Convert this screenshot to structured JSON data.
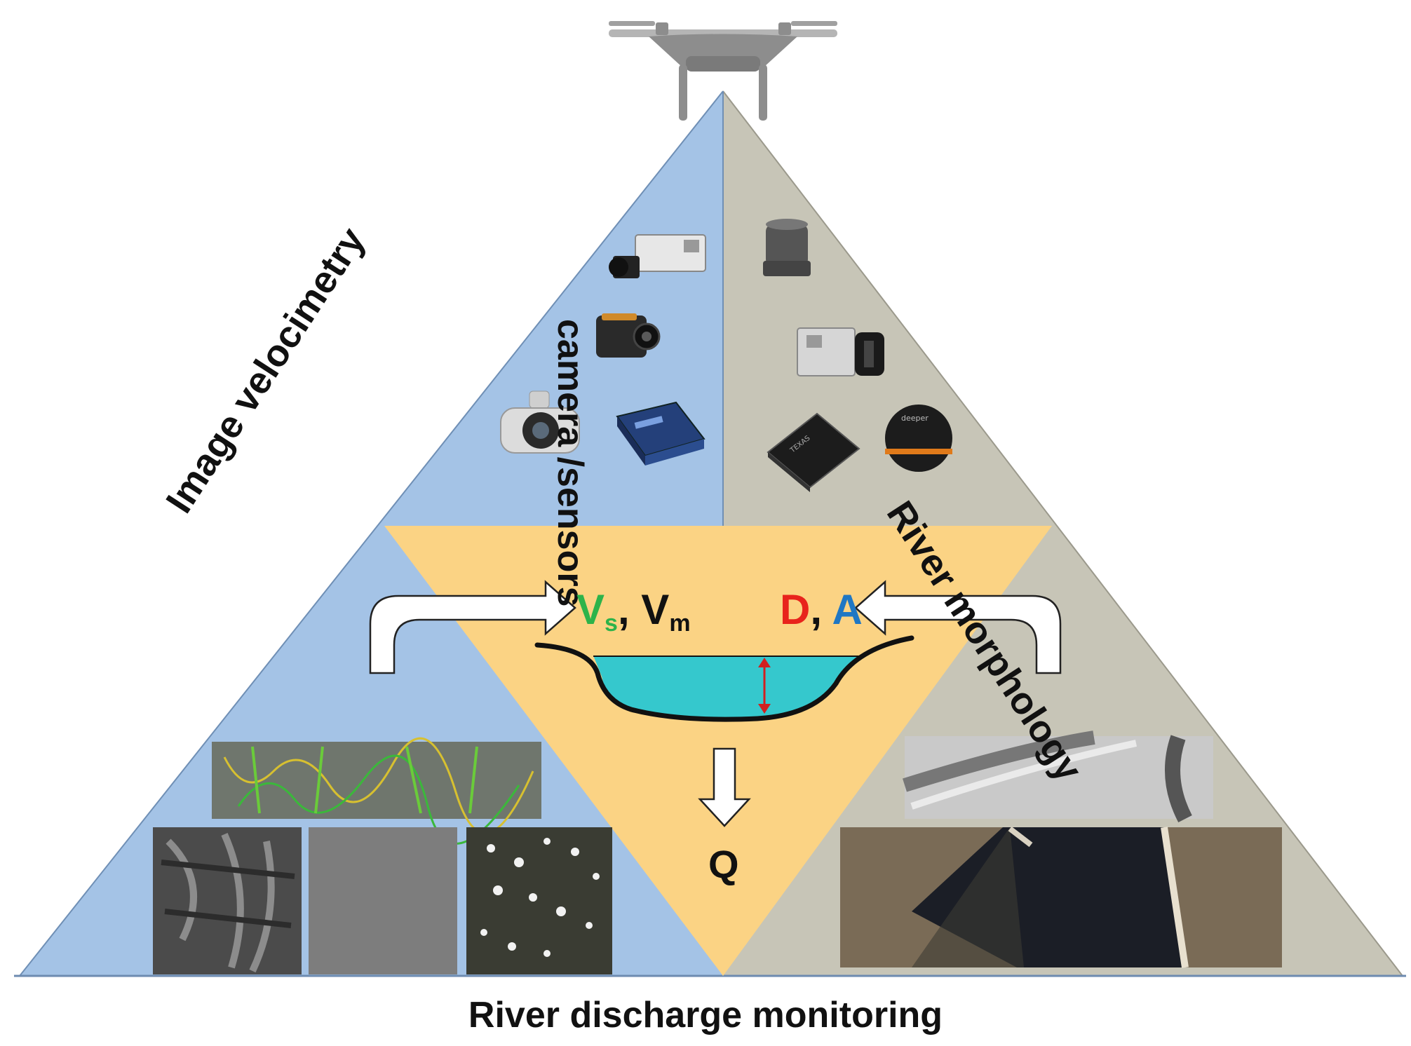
{
  "caption": "River discharge monitoring",
  "sides": {
    "left": "Image velocimetry",
    "right": "River morphology",
    "center": "camera /sensors"
  },
  "variables": {
    "vs_main": "V",
    "vs_sub": "s",
    "comma1": ", ",
    "vm_main": "V",
    "vm_sub": "m",
    "d": "D",
    "comma2": ", ",
    "a": "A",
    "q": "Q"
  },
  "colors": {
    "left_panel": "#a4c3e6",
    "right_panel": "#c7c5b7",
    "inner_triangle": "#fbd384",
    "water": "#35c8cd",
    "vs_color": "#2db34a",
    "d_color": "#e8231c",
    "a_color": "#1f77c4",
    "depth_arrow": "#d21f1f"
  },
  "icons": [
    "drone-icon",
    "camera-icon",
    "thermal-camera-icon",
    "gimbal-camera-icon",
    "sensor-box-icon",
    "gnss-antenna-icon",
    "lidar-icon",
    "radar-chip-icon",
    "sonar-ball-icon"
  ]
}
